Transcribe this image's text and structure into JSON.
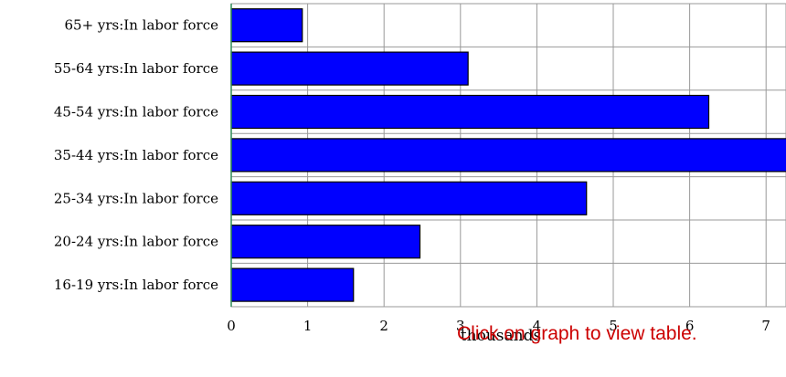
{
  "chart_data": {
    "type": "bar",
    "orientation": "horizontal",
    "categories": [
      "65+ yrs:In labor force",
      "55-64 yrs:In labor force",
      "45-54 yrs:In labor force",
      "35-44 yrs:In labor force",
      "25-34 yrs:In labor force",
      "20-24 yrs:In labor force",
      "16-19 yrs:In labor force"
    ],
    "values": [
      0.93,
      3.1,
      6.25,
      7.3,
      4.65,
      2.47,
      1.6
    ],
    "xlabel": "thousands",
    "xlim": [
      0,
      7.2
    ],
    "xticks": [
      "0",
      "1",
      "2",
      "3",
      "4",
      "5",
      "6",
      "7"
    ],
    "grid": true,
    "bar_color": "#0000ff",
    "bar_edge_color": "#000000"
  },
  "note": "Click on graph to view table."
}
